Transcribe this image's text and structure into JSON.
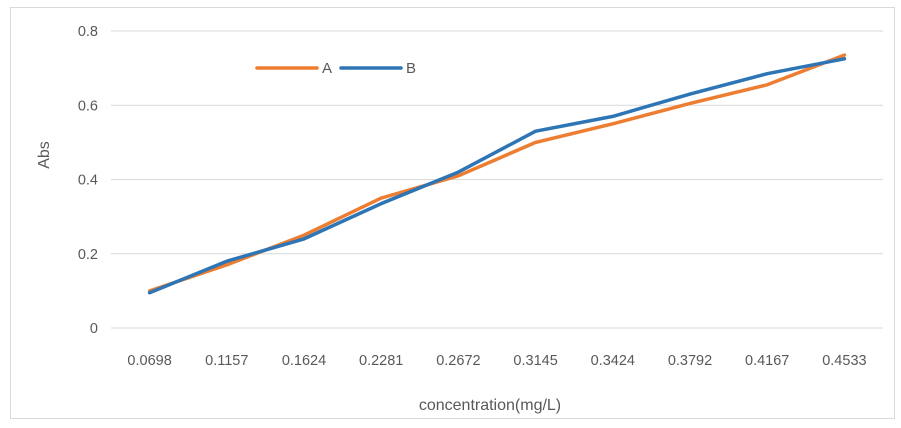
{
  "chart_data": {
    "type": "line",
    "title": "",
    "xlabel": "concentration(mg/L)",
    "ylabel": "Abs",
    "categories": [
      "0.0698",
      "0.1157",
      "0.1624",
      "0.2281",
      "0.2672",
      "0.3145",
      "0.3424",
      "0.3792",
      "0.4167",
      "0.4533"
    ],
    "series": [
      {
        "name": "A",
        "color": "#ed7d31",
        "values": [
          0.1,
          0.17,
          0.25,
          0.35,
          0.41,
          0.5,
          0.55,
          0.605,
          0.655,
          0.735
        ]
      },
      {
        "name": "B",
        "color": "#2e75b6",
        "values": [
          0.095,
          0.18,
          0.24,
          0.335,
          0.42,
          0.53,
          0.57,
          0.63,
          0.685,
          0.725
        ]
      }
    ],
    "ylim": [
      0,
      0.8
    ],
    "yticks": [
      "0",
      "0.2",
      "0.4",
      "0.6",
      "0.8"
    ],
    "grid": true,
    "legend_position": "top-left"
  }
}
